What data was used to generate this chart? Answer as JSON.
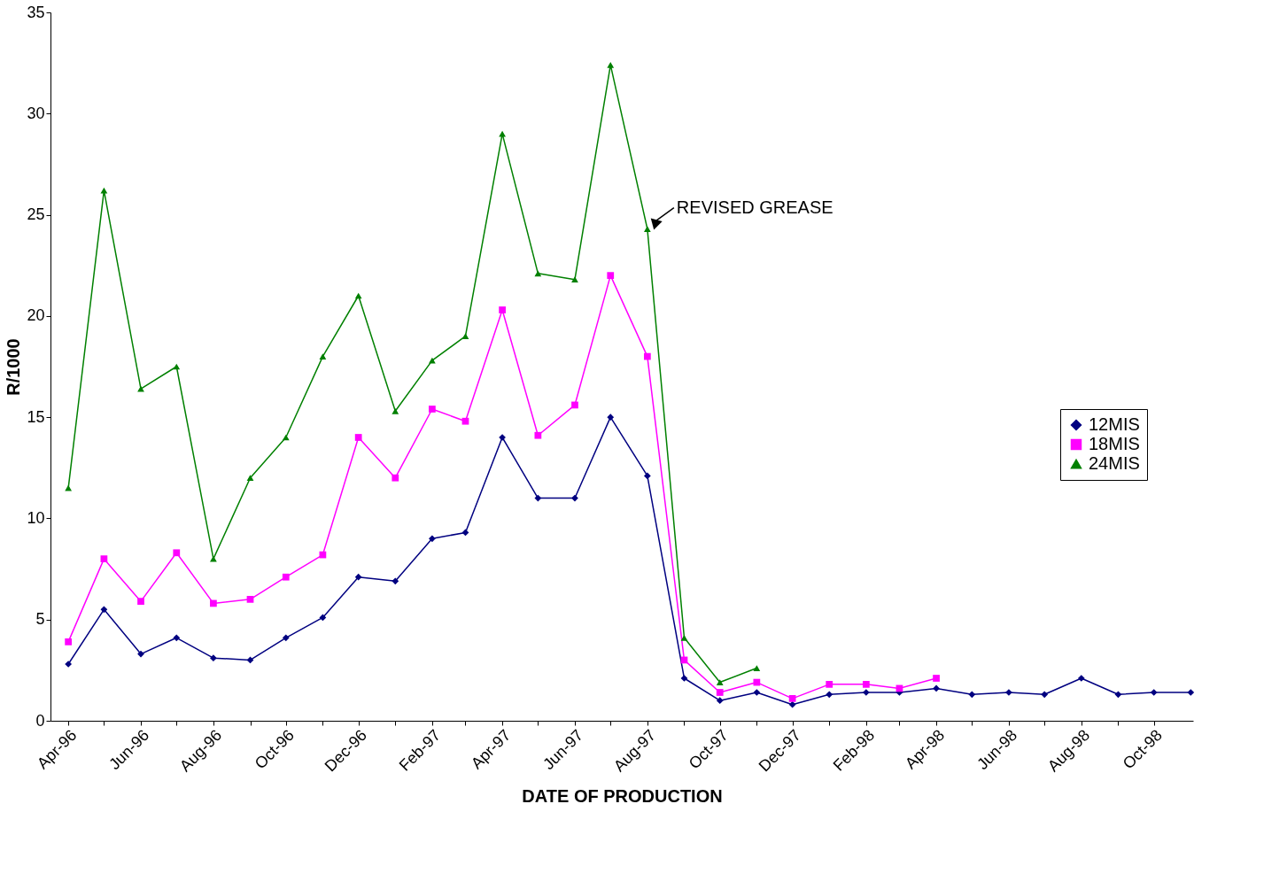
{
  "chart_data": {
    "type": "line",
    "xlabel": "DATE OF PRODUCTION",
    "ylabel": "R/1000",
    "x": [
      "1996-04",
      "1996-05",
      "1996-06",
      "1996-07",
      "1996-08",
      "1996-09",
      "1996-10",
      "1996-11",
      "1996-12",
      "1997-01",
      "1997-02",
      "1997-03",
      "1997-04",
      "1997-05",
      "1997-06",
      "1997-07",
      "1997-08",
      "1997-09",
      "1997-10",
      "1997-11",
      "1997-12",
      "1998-01",
      "1998-02",
      "1998-03",
      "1998-04",
      "1998-05",
      "1998-06",
      "1998-07",
      "1998-08",
      "1998-09",
      "1998-10",
      "1998-11"
    ],
    "series": [
      {
        "name": "12MIS",
        "color": "#000080",
        "marker": "diamond",
        "values": [
          2.8,
          5.5,
          3.3,
          4.1,
          3.1,
          3.0,
          4.1,
          5.1,
          7.1,
          6.9,
          9.0,
          9.3,
          14.0,
          11.0,
          11.0,
          15.0,
          12.1,
          2.1,
          1.0,
          1.4,
          0.8,
          1.3,
          1.4,
          1.4,
          1.6,
          1.3,
          1.4,
          1.3,
          2.1,
          1.3,
          1.4,
          1.4
        ]
      },
      {
        "name": "18MIS",
        "color": "#ff00ff",
        "marker": "square",
        "values": [
          3.9,
          8.0,
          5.9,
          8.3,
          5.8,
          6.0,
          7.1,
          8.2,
          14.0,
          12.0,
          15.4,
          14.8,
          20.3,
          14.1,
          15.6,
          22.0,
          18.0,
          3.0,
          1.4,
          1.9,
          1.1,
          1.8,
          1.8,
          1.6,
          2.1,
          null,
          null,
          null,
          null,
          null,
          null,
          null
        ]
      },
      {
        "name": "24MIS",
        "color": "#008000",
        "marker": "triangle",
        "values": [
          11.5,
          26.2,
          16.4,
          17.5,
          8.0,
          12.0,
          14.0,
          18.0,
          21.0,
          15.3,
          17.8,
          19.0,
          29.0,
          22.1,
          21.8,
          32.4,
          24.3,
          4.1,
          1.9,
          2.6,
          null,
          null,
          null,
          null,
          null,
          null,
          null,
          null,
          null,
          null,
          null,
          null
        ]
      }
    ],
    "xlim": [
      "1996-03-17",
      "1998-11-03"
    ],
    "xticks": [
      {
        "value": "1996-04",
        "label": "Apr-96"
      },
      {
        "value": "1996-05",
        "label": null
      },
      {
        "value": "1996-06",
        "label": "Jun-96"
      },
      {
        "value": "1996-07",
        "label": null
      },
      {
        "value": "1996-08",
        "label": "Aug-96"
      },
      {
        "value": "1996-09",
        "label": null
      },
      {
        "value": "1996-10",
        "label": "Oct-96"
      },
      {
        "value": "1996-11",
        "label": null
      },
      {
        "value": "1996-12",
        "label": "Dec-96"
      },
      {
        "value": "1997-01",
        "label": null
      },
      {
        "value": "1997-02",
        "label": "Feb-97"
      },
      {
        "value": "1997-03",
        "label": null
      },
      {
        "value": "1997-04",
        "label": "Apr-97"
      },
      {
        "value": "1997-05",
        "label": null
      },
      {
        "value": "1997-06",
        "label": "Jun-97"
      },
      {
        "value": "1997-07",
        "label": null
      },
      {
        "value": "1997-08",
        "label": "Aug-97"
      },
      {
        "value": "1997-09",
        "label": null
      },
      {
        "value": "1997-10",
        "label": "Oct-97"
      },
      {
        "value": "1997-11",
        "label": null
      },
      {
        "value": "1997-12",
        "label": "Dec-97"
      },
      {
        "value": "1998-01",
        "label": null
      },
      {
        "value": "1998-02",
        "label": "Feb-98"
      },
      {
        "value": "1998-03",
        "label": null
      },
      {
        "value": "1998-04",
        "label": "Apr-98"
      },
      {
        "value": "1998-05",
        "label": null
      },
      {
        "value": "1998-06",
        "label": "Jun-98"
      },
      {
        "value": "1998-07",
        "label": null
      },
      {
        "value": "1998-08",
        "label": "Aug-98"
      },
      {
        "value": "1998-09",
        "label": null
      },
      {
        "value": "1998-10",
        "label": "Oct-98"
      }
    ],
    "ylim": [
      0,
      35
    ],
    "yticks": [
      0,
      5,
      10,
      15,
      20,
      25,
      30,
      35
    ],
    "grid": false,
    "legend": "right",
    "line_style": "solid",
    "annotations": [
      {
        "text": "REVISED GREASE",
        "x": "1997-08",
        "y": 24.3
      }
    ]
  }
}
